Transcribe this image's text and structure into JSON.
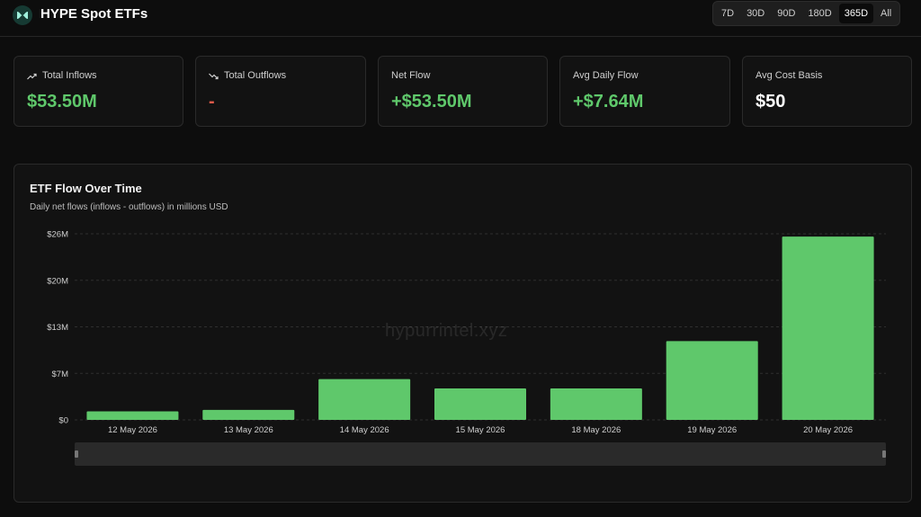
{
  "app": {
    "title": "HYPE Spot ETFs",
    "logo_icon": "hyperliquid-logo-icon"
  },
  "range_buttons": [
    {
      "label": "7D",
      "active": false
    },
    {
      "label": "30D",
      "active": false
    },
    {
      "label": "90D",
      "active": false
    },
    {
      "label": "180D",
      "active": false
    },
    {
      "label": "365D",
      "active": true
    },
    {
      "label": "All",
      "active": false
    }
  ],
  "stats": [
    {
      "label": "Total Inflows",
      "icon": "trending-up-icon",
      "value": "$53.50M",
      "color": "#5fc86b"
    },
    {
      "label": "Total Outflows",
      "icon": "trending-down-icon",
      "value": "-",
      "color": "#e05a4a"
    },
    {
      "label": "Net Flow",
      "icon": "",
      "value": "+$53.50M",
      "color": "#5fc86b"
    },
    {
      "label": "Avg Daily Flow",
      "icon": "",
      "value": "+$7.64M",
      "color": "#5fc86b"
    },
    {
      "label": "Avg Cost Basis",
      "icon": "",
      "value": "$50",
      "color": "#ffffff"
    }
  ],
  "panel": {
    "title": "ETF Flow Over Time",
    "subtitle": "Daily net flows (inflows - outflows) in millions USD",
    "watermark": "hypurrintel.xyz"
  },
  "chart_data": {
    "type": "bar",
    "categories": [
      "12 May 2026",
      "13 May 2026",
      "14 May 2026",
      "15 May 2026",
      "18 May 2026",
      "19 May 2026",
      "20 May 2026"
    ],
    "values": [
      1.2,
      1.4,
      5.7,
      4.4,
      4.4,
      11.0,
      25.6
    ],
    "y_ticks": [
      "$0",
      "$7M",
      "$13M",
      "$20M",
      "$26M"
    ],
    "y_tick_values": [
      0,
      6.5,
      13,
      19.5,
      26
    ],
    "ylim": [
      0,
      26
    ],
    "bar_color": "#5fc86b",
    "grid": true
  }
}
